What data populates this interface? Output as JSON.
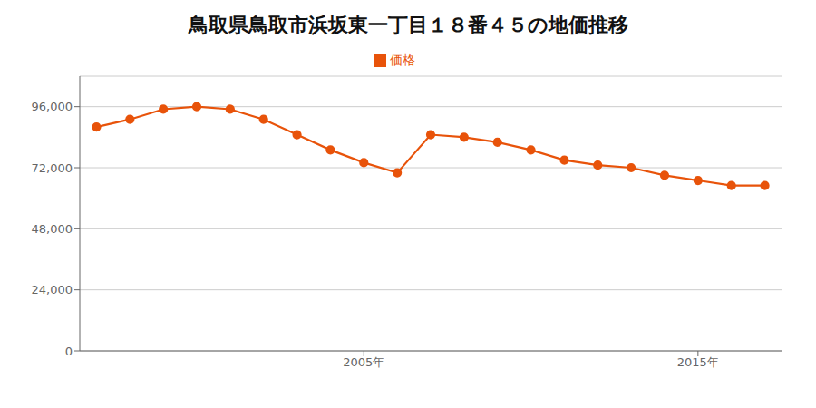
{
  "chart_data": {
    "type": "line",
    "title": "鳥取県鳥取市浜坂東一丁目１８番４５の地価推移",
    "x": [
      1997,
      1998,
      1999,
      2000,
      2001,
      2002,
      2003,
      2004,
      2005,
      2006,
      2007,
      2008,
      2009,
      2010,
      2011,
      2012,
      2013,
      2014,
      2015,
      2016,
      2017
    ],
    "series": [
      {
        "name": "価格",
        "color": "#e8530a",
        "marker": "circle",
        "values": [
          88000,
          91000,
          95000,
          96000,
          95000,
          91000,
          85000,
          79000,
          74000,
          70000,
          85000,
          84000,
          82000,
          79000,
          75000,
          73000,
          72000,
          69000,
          67000,
          65000,
          65000
        ]
      }
    ],
    "xlim": [
      1996.5,
      2017.5
    ],
    "xticks": [
      {
        "value": 2005,
        "label": "2005年"
      },
      {
        "value": 2015,
        "label": "2015年"
      }
    ],
    "ylim": [
      0,
      108000
    ],
    "yticks": [
      0,
      {
        "value": 24000,
        "label": "24,000"
      },
      {
        "value": 48000,
        "label": "48,000"
      },
      {
        "value": 72000,
        "label": "72,000"
      },
      {
        "value": 96000,
        "label": "96,000"
      }
    ],
    "grid": true,
    "legend": "top"
  }
}
